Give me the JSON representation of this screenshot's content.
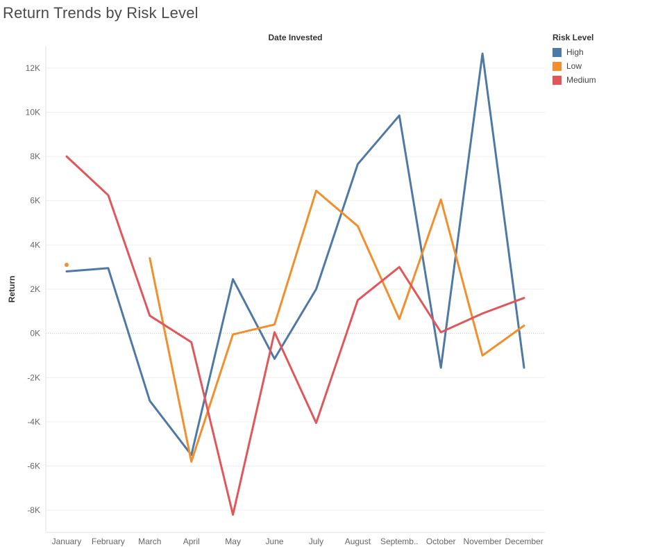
{
  "title": "Return Trends by Risk Level",
  "chart_data": {
    "type": "line",
    "title": "Return Trends by Risk Level",
    "xlabel": "Date Invested",
    "ylabel": "Return",
    "categories": [
      "January",
      "February",
      "March",
      "April",
      "May",
      "June",
      "July",
      "August",
      "Septemb..",
      "October",
      "November",
      "December"
    ],
    "ylim": [
      -9000,
      13000
    ],
    "yticks": [
      12000,
      10000,
      8000,
      6000,
      4000,
      2000,
      0,
      -2000,
      -4000,
      -6000,
      -8000
    ],
    "ytick_labels": [
      "12K",
      "10K",
      "8K",
      "6K",
      "4K",
      "2K",
      "0K",
      "-2K",
      "-4K",
      "-6K",
      "-8K"
    ],
    "grid": true,
    "legend": {
      "title": "Risk Level",
      "placement": "top-right"
    },
    "series": [
      {
        "name": "High",
        "color": "#4e79a7",
        "values": [
          2800,
          2950,
          -3050,
          -5500,
          2450,
          -1150,
          2000,
          7650,
          9850,
          -1550,
          12650,
          -1550
        ]
      },
      {
        "name": "Low",
        "color": "#f28e2b",
        "values": [
          3100,
          null,
          3400,
          -5800,
          -50,
          400,
          6450,
          4850,
          650,
          6050,
          -1000,
          350
        ]
      },
      {
        "name": "Medium",
        "color": "#e15759",
        "values": [
          8000,
          6250,
          800,
          -400,
          -8200,
          50,
          -4050,
          1500,
          3000,
          50,
          900,
          1600
        ]
      }
    ]
  }
}
